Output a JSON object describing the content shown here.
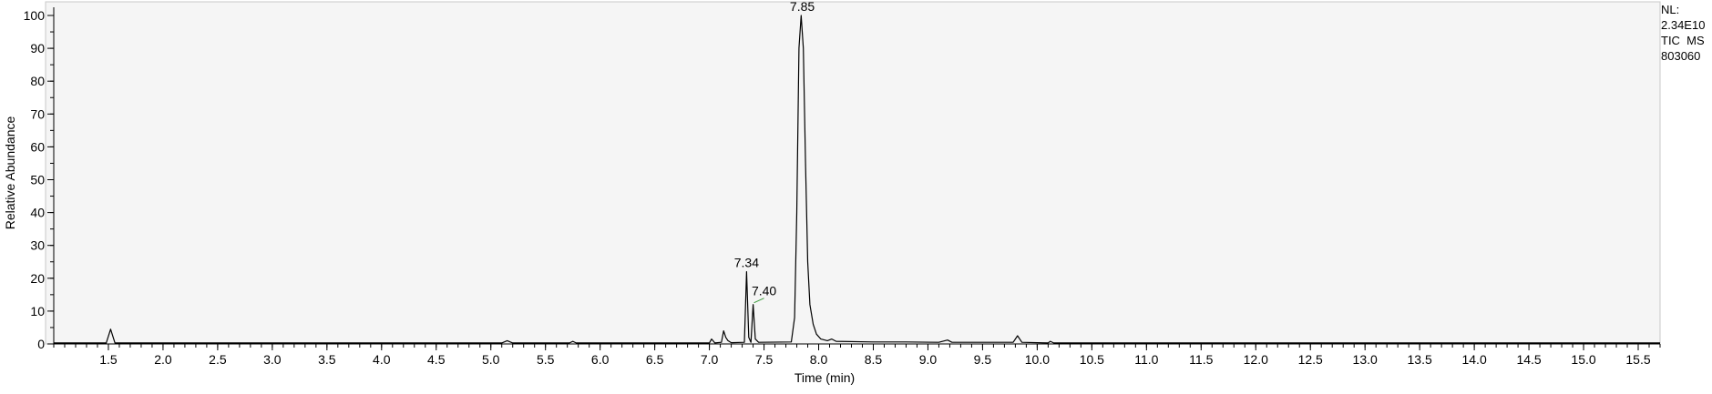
{
  "info": {
    "line1": "NL:",
    "line2": "2.34E10",
    "line3": "TIC  MS",
    "line4": "803060"
  },
  "chart_data": {
    "type": "line",
    "title": "",
    "xlabel": "Time (min)",
    "ylabel": "Relative Abundance",
    "xlim": [
      1.0,
      15.7
    ],
    "ylim": [
      0,
      100
    ],
    "x_ticks": [
      "1.5",
      "2.0",
      "2.5",
      "3.0",
      "3.5",
      "4.0",
      "4.5",
      "5.0",
      "5.5",
      "6.0",
      "6.5",
      "7.0",
      "7.5",
      "8.0",
      "8.5",
      "9.0",
      "9.5",
      "10.0",
      "10.5",
      "11.0",
      "11.5",
      "12.0",
      "12.5",
      "13.0",
      "13.5",
      "14.0",
      "14.5",
      "15.0",
      "15.5"
    ],
    "y_ticks": [
      "0",
      "10",
      "20",
      "30",
      "40",
      "50",
      "60",
      "70",
      "80",
      "90",
      "100"
    ],
    "peak_labels": [
      {
        "text": "7.85",
        "x": 7.85,
        "y": 100
      },
      {
        "text": "7.34",
        "x": 7.34,
        "y": 22
      },
      {
        "text": "7.40",
        "x": 7.4,
        "y": 12
      }
    ],
    "series": [
      {
        "points": [
          [
            1.0,
            0.3
          ],
          [
            1.48,
            0.3
          ],
          [
            1.52,
            4.5
          ],
          [
            1.56,
            0.3
          ],
          [
            5.1,
            0.3
          ],
          [
            5.15,
            1.0
          ],
          [
            5.2,
            0.3
          ],
          [
            5.72,
            0.3
          ],
          [
            5.75,
            0.8
          ],
          [
            5.78,
            0.3
          ],
          [
            7.0,
            0.3
          ],
          [
            7.02,
            1.5
          ],
          [
            7.05,
            0.3
          ],
          [
            7.11,
            0.5
          ],
          [
            7.13,
            4.0
          ],
          [
            7.15,
            2.0
          ],
          [
            7.17,
            1.0
          ],
          [
            7.2,
            0.4
          ],
          [
            7.32,
            0.5
          ],
          [
            7.34,
            22
          ],
          [
            7.36,
            2.0
          ],
          [
            7.38,
            0.5
          ],
          [
            7.4,
            12
          ],
          [
            7.42,
            1.5
          ],
          [
            7.45,
            0.5
          ],
          [
            7.75,
            0.6
          ],
          [
            7.78,
            8
          ],
          [
            7.8,
            40
          ],
          [
            7.82,
            90
          ],
          [
            7.84,
            100
          ],
          [
            7.86,
            90
          ],
          [
            7.88,
            55
          ],
          [
            7.9,
            25
          ],
          [
            7.92,
            12
          ],
          [
            7.95,
            6
          ],
          [
            7.98,
            3
          ],
          [
            8.02,
            1.5
          ],
          [
            8.08,
            1.0
          ],
          [
            8.12,
            1.5
          ],
          [
            8.16,
            0.8
          ],
          [
            8.5,
            0.6
          ],
          [
            8.8,
            0.6
          ],
          [
            9.1,
            0.5
          ],
          [
            9.18,
            1.2
          ],
          [
            9.22,
            0.5
          ],
          [
            9.78,
            0.5
          ],
          [
            9.82,
            2.5
          ],
          [
            9.86,
            0.5
          ],
          [
            10.1,
            0.3
          ],
          [
            10.12,
            0.8
          ],
          [
            10.15,
            0.3
          ],
          [
            15.7,
            0.3
          ]
        ]
      }
    ]
  }
}
